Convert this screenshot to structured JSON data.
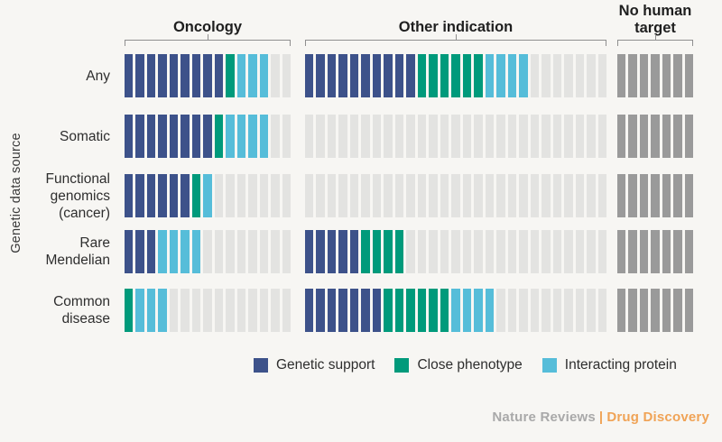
{
  "ylabel": "Genetic data source",
  "footer": {
    "journal": "Nature Reviews",
    "separator": "|",
    "publication": "Drug Discovery"
  },
  "chart_data": {
    "type": "waffle",
    "ylabel": "Genetic data source",
    "groups": [
      "Oncology",
      "Other indication",
      "No human target"
    ],
    "group_totals": [
      15,
      27,
      7
    ],
    "row_labels": [
      "Any",
      "Somatic",
      "Functional genomics (cancer)",
      "Rare Mendelian",
      "Common disease"
    ],
    "row_label_lines": [
      [
        "Any"
      ],
      [
        "Somatic"
      ],
      [
        "Functional",
        "genomics",
        "(cancer)"
      ],
      [
        "Rare",
        "Mendelian"
      ],
      [
        "Common",
        "disease"
      ]
    ],
    "segment_order": [
      "genetic_support",
      "close_phenotype",
      "interacting_protein",
      "empty"
    ],
    "palette": {
      "genetic_support": "#3d528a",
      "close_phenotype": "#009a7b",
      "interacting_protein": "#56bdd9",
      "empty": "#e3e3e1",
      "no_human_target": "#9a9a9a"
    },
    "cells": [
      {
        "row": "Any",
        "oncology": [
          9,
          1,
          3,
          2
        ],
        "other_indication": [
          10,
          6,
          4,
          7
        ],
        "no_human_target": 7
      },
      {
        "row": "Somatic",
        "oncology": [
          8,
          1,
          4,
          2
        ],
        "other_indication": [
          0,
          0,
          0,
          27
        ],
        "no_human_target": 7
      },
      {
        "row": "Functional genomics (cancer)",
        "oncology": [
          6,
          1,
          1,
          7
        ],
        "other_indication": [
          0,
          0,
          0,
          27
        ],
        "no_human_target": 7
      },
      {
        "row": "Rare Mendelian",
        "oncology": [
          3,
          0,
          4,
          8
        ],
        "other_indication": [
          5,
          4,
          0,
          18
        ],
        "no_human_target": 7
      },
      {
        "row": "Common disease",
        "oncology": [
          0,
          1,
          3,
          11
        ],
        "other_indication": [
          7,
          6,
          4,
          10
        ],
        "no_human_target": 7
      }
    ],
    "legend": [
      {
        "label": "Genetic support",
        "color": "#3d528a"
      },
      {
        "label": "Close phenotype",
        "color": "#009a7b"
      },
      {
        "label": "Interacting protein",
        "color": "#56bdd9"
      }
    ]
  }
}
